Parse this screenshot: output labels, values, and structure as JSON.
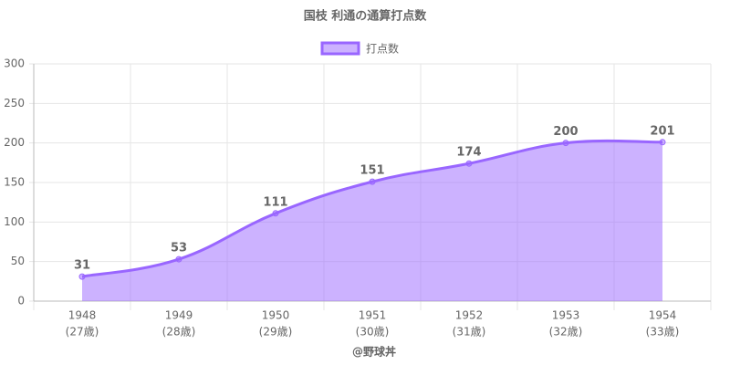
{
  "chart_data": {
    "type": "line",
    "title": "国枝 利通の通算打点数",
    "categories": [
      [
        "1948",
        "(27歳)"
      ],
      [
        "1949",
        "(28歳)"
      ],
      [
        "1950",
        "(29歳)"
      ],
      [
        "1951",
        "(30歳)"
      ],
      [
        "1952",
        "(31歳)"
      ],
      [
        "1953",
        "(32歳)"
      ],
      [
        "1954",
        "(33歳)"
      ]
    ],
    "series": [
      {
        "name": "打点数",
        "color": "#9966ff",
        "values": [
          31,
          53,
          111,
          151,
          174,
          200,
          201
        ]
      }
    ],
    "x_label": "@野球丼",
    "ylim": [
      0,
      300
    ],
    "yticks": [
      0,
      50,
      100,
      150,
      200,
      250,
      300
    ],
    "grid": true,
    "fill": true,
    "legend": "top"
  }
}
